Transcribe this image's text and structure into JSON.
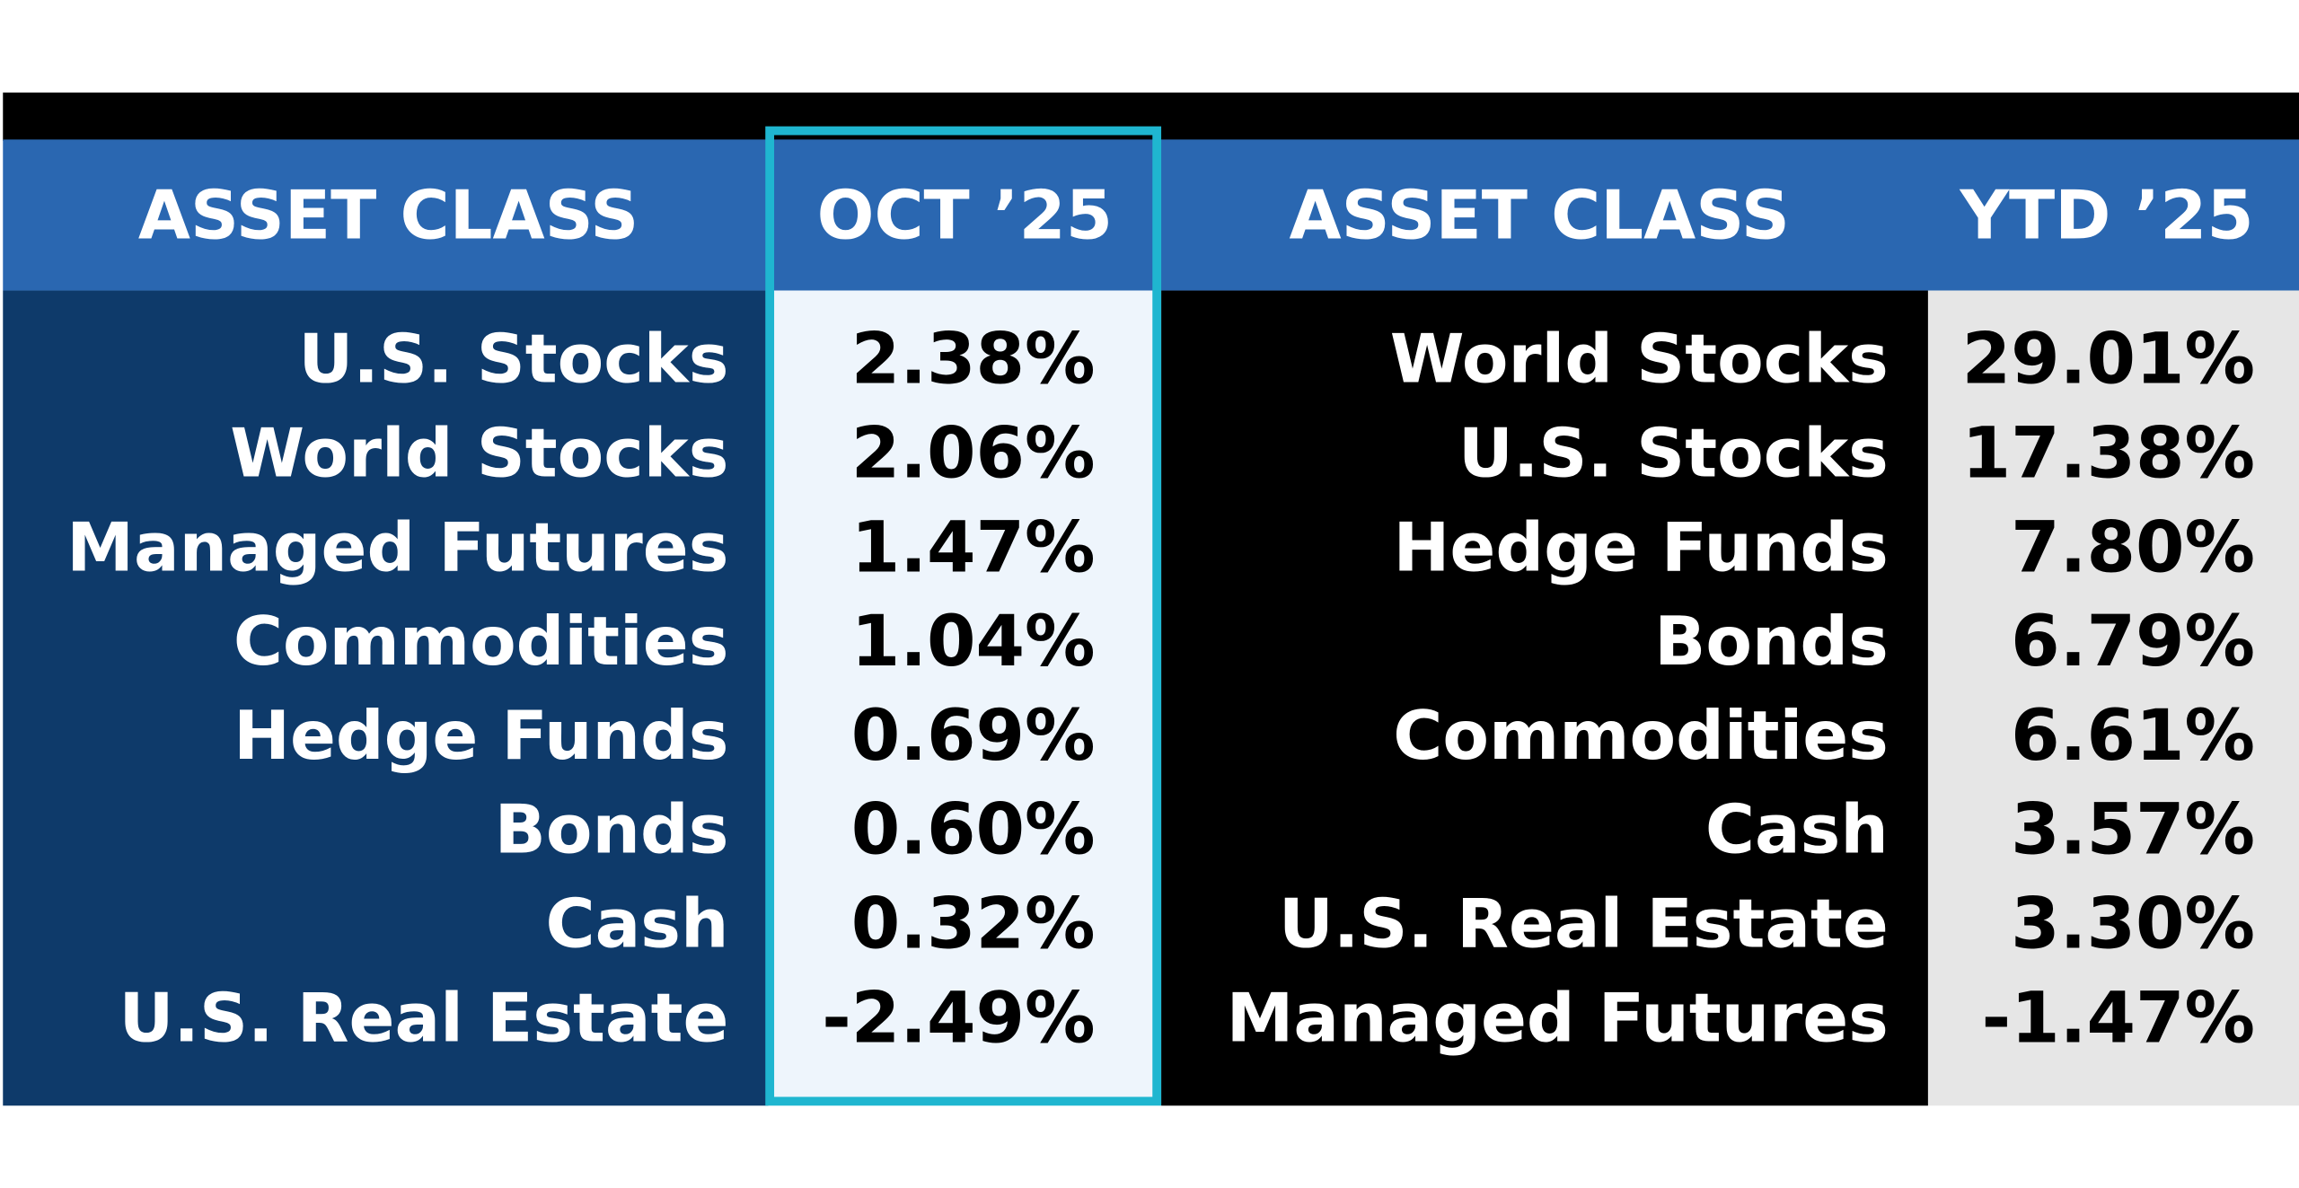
{
  "left": {
    "header": [
      "ASSET CLASS",
      "OCT ’25"
    ],
    "rows": [
      [
        "U.S. Stocks",
        "2.38%"
      ],
      [
        "World Stocks",
        "2.06%"
      ],
      [
        "Managed Futures",
        "1.47%"
      ],
      [
        "Commodities",
        "1.04%"
      ],
      [
        "Hedge Funds",
        "0.69%"
      ],
      [
        "Bonds",
        "0.60%"
      ],
      [
        "Cash",
        "0.32%"
      ],
      [
        "U.S. Real Estate",
        "-2.49%"
      ]
    ]
  },
  "right": {
    "header": [
      "ASSET CLASS",
      "YTD ’25"
    ],
    "rows": [
      [
        "World Stocks",
        "29.01%"
      ],
      [
        "U.S. Stocks",
        "17.38%"
      ],
      [
        "Hedge Funds",
        "7.80%"
      ],
      [
        "Bonds",
        "6.79%"
      ],
      [
        "Commodities",
        "6.61%"
      ],
      [
        "Cash",
        "3.57%"
      ],
      [
        "U.S. Real Estate",
        "3.30%"
      ],
      [
        "Managed Futures",
        "-1.47%"
      ]
    ]
  }
}
